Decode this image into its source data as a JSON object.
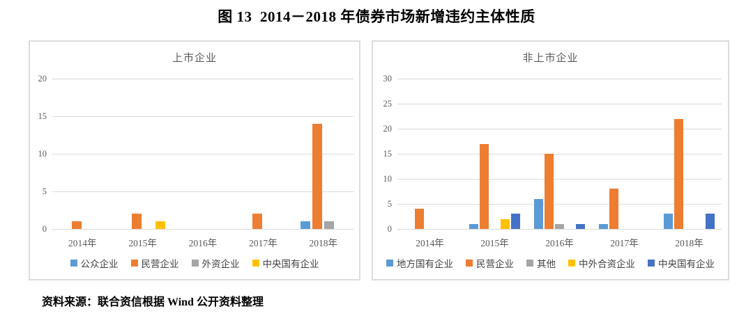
{
  "figure": {
    "title": "图 13  2014－2018 年债券市场新增违约主体性质",
    "source_note": "资料来源：联合资信根据 Wind 公开资料整理"
  },
  "chart_data": [
    {
      "type": "bar",
      "title": "上市企业",
      "categories": [
        "2014年",
        "2015年",
        "2016年",
        "2017年",
        "2018年"
      ],
      "series": [
        {
          "name": "公众企业",
          "color": "#5B9BD5",
          "values": [
            0,
            0,
            0,
            0,
            1
          ]
        },
        {
          "name": "民营企业",
          "color": "#ED7D31",
          "values": [
            1,
            2,
            0,
            2,
            14
          ]
        },
        {
          "name": "外资企业",
          "color": "#A5A5A5",
          "values": [
            0,
            0,
            0,
            0,
            1
          ]
        },
        {
          "name": "中央国有企业",
          "color": "#FFC000",
          "values": [
            0,
            1,
            0,
            0,
            0
          ]
        }
      ],
      "xlabel": "",
      "ylabel": "",
      "ylim": [
        0,
        20
      ],
      "ystep": 5,
      "grid": true,
      "legend_position": "bottom"
    },
    {
      "type": "bar",
      "title": "非上市企业",
      "categories": [
        "2014年",
        "2015年",
        "2016年",
        "2017年",
        "2018年"
      ],
      "series": [
        {
          "name": "地方国有企业",
          "color": "#5B9BD5",
          "values": [
            0,
            1,
            6,
            1,
            3
          ]
        },
        {
          "name": "民营企业",
          "color": "#ED7D31",
          "values": [
            4,
            17,
            15,
            8,
            22
          ]
        },
        {
          "name": "其他",
          "color": "#A5A5A5",
          "values": [
            0,
            0,
            1,
            0,
            0
          ]
        },
        {
          "name": "中外合资企业",
          "color": "#FFC000",
          "values": [
            0,
            2,
            0,
            0,
            0
          ]
        },
        {
          "name": "中央国有企业",
          "color": "#4472C4",
          "values": [
            0,
            3,
            1,
            0,
            3
          ]
        }
      ],
      "xlabel": "",
      "ylabel": "",
      "ylim": [
        0,
        30
      ],
      "ystep": 5,
      "grid": true,
      "legend_position": "bottom"
    }
  ]
}
